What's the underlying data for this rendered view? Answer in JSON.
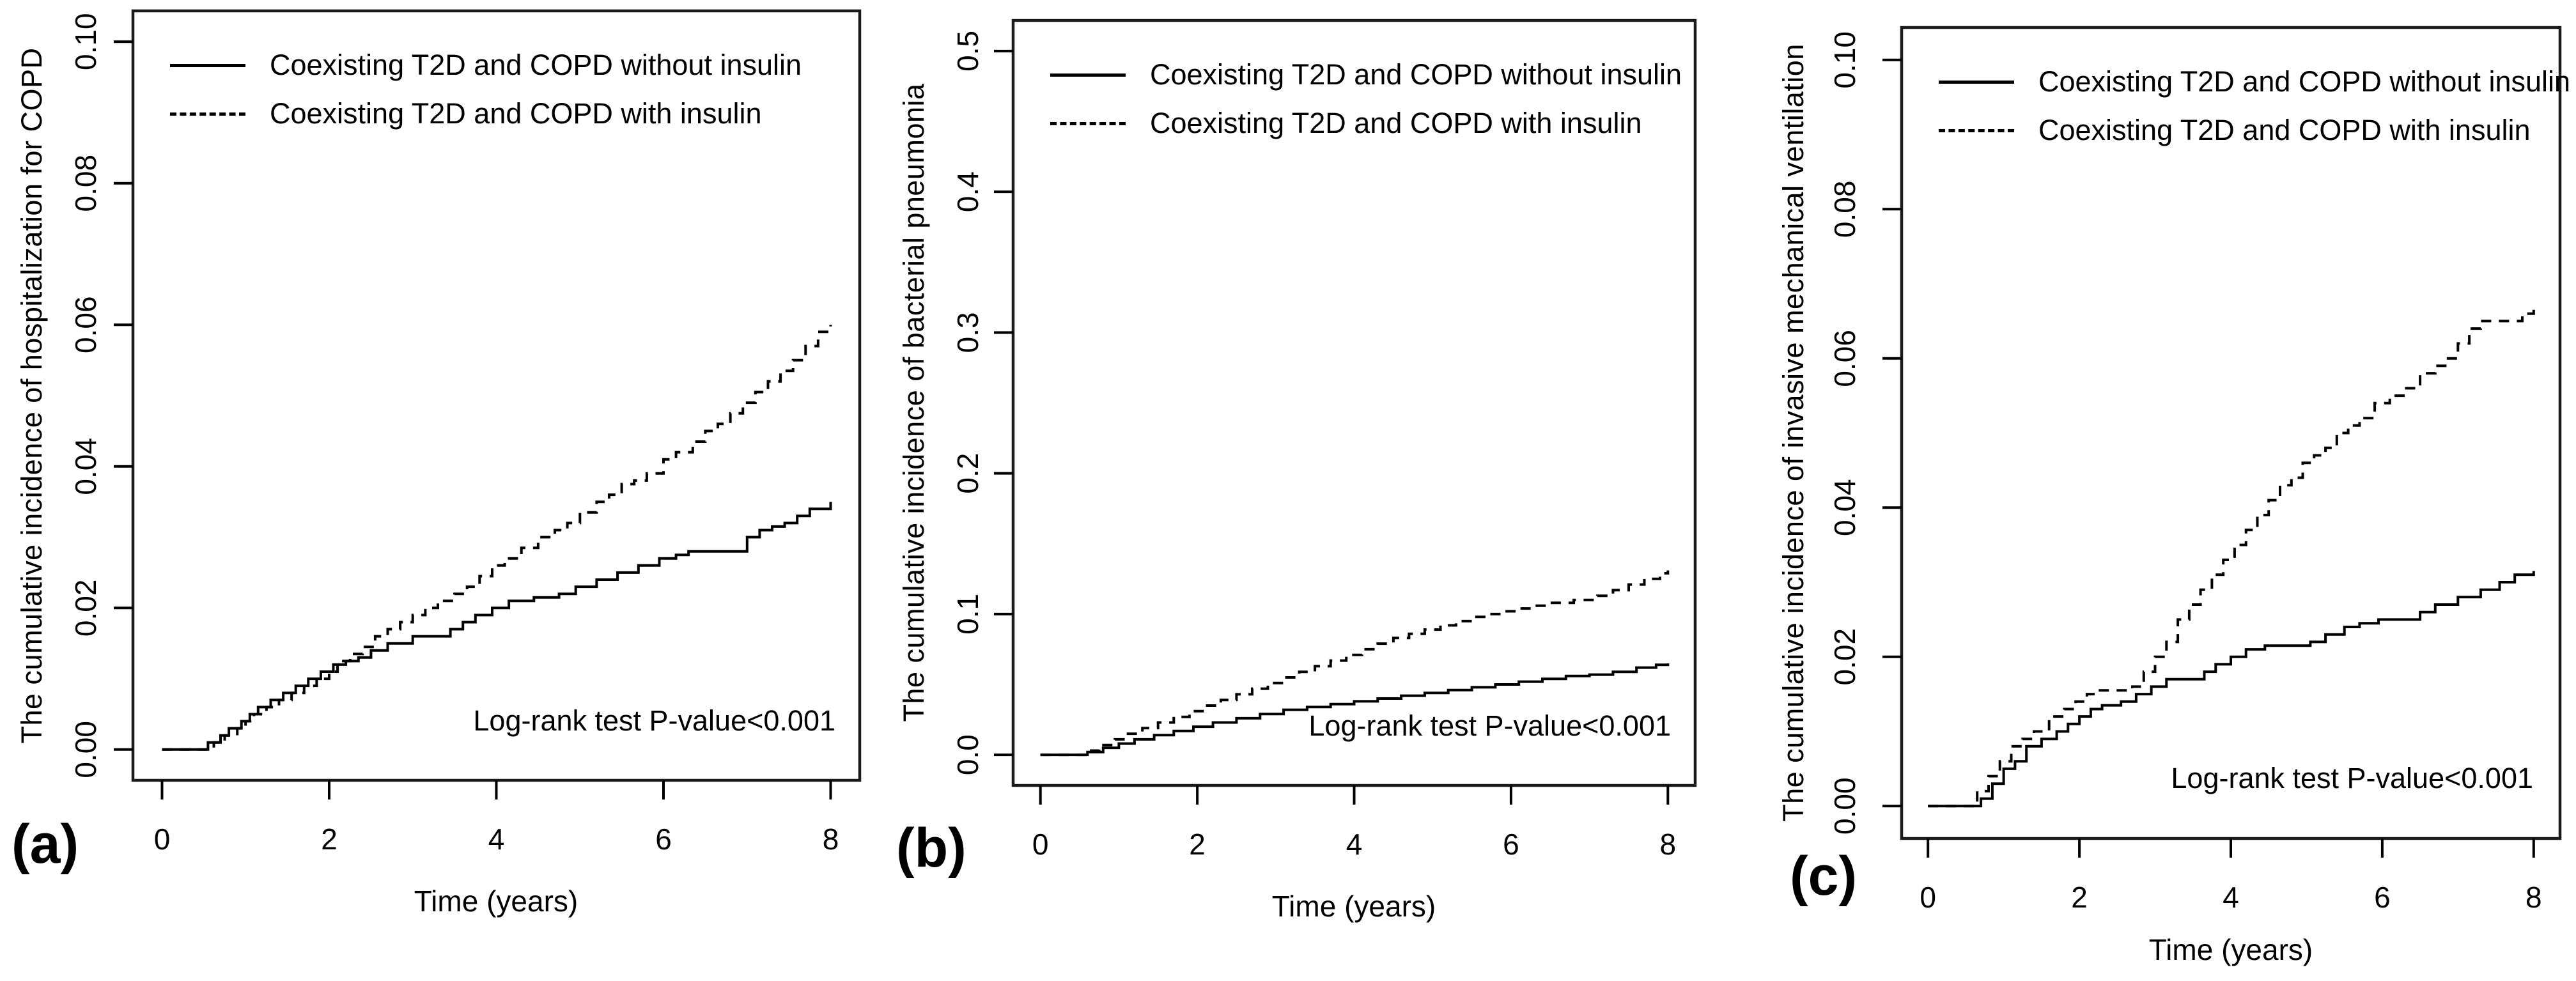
{
  "figure": {
    "background": "#ffffff",
    "line_color": "#000000",
    "border_color": "#1a1a1a",
    "text_color": "#000000"
  },
  "chart_data": [
    {
      "type": "line",
      "step": true,
      "grid": false,
      "panel_label": "(a)",
      "xlabel": "Time (years)",
      "ylabel": "The cumulative incidence of hospitalization for COPD",
      "annotation": "Log-rank test P-value<0.001",
      "legend_position": "top-left",
      "xlim": [
        0,
        8
      ],
      "ylim": [
        0,
        0.1
      ],
      "xticks": [
        "0",
        "2",
        "4",
        "6",
        "8"
      ],
      "yticks": [
        "0.00",
        "0.02",
        "0.04",
        "0.06",
        "0.08",
        "0.10"
      ],
      "series": [
        {
          "name": "Coexisting T2D and COPD without insulin",
          "style": "solid",
          "color": "#000000",
          "x": [
            0,
            0.55,
            0.7,
            0.8,
            0.95,
            1.05,
            1.15,
            1.3,
            1.45,
            1.6,
            1.75,
            1.9,
            2.05,
            2.2,
            2.35,
            2.5,
            2.7,
            3.0,
            3.45,
            3.6,
            3.75,
            3.95,
            4.15,
            4.45,
            4.75,
            4.95,
            5.2,
            5.45,
            5.7,
            5.95,
            6.15,
            6.3,
            7.0,
            7.15,
            7.3,
            7.45,
            7.6,
            7.75,
            8.0
          ],
          "y": [
            0,
            0.001,
            0.002,
            0.003,
            0.004,
            0.005,
            0.006,
            0.007,
            0.008,
            0.009,
            0.01,
            0.011,
            0.012,
            0.0125,
            0.013,
            0.014,
            0.015,
            0.016,
            0.017,
            0.018,
            0.019,
            0.02,
            0.021,
            0.0215,
            0.022,
            0.023,
            0.024,
            0.025,
            0.026,
            0.027,
            0.0275,
            0.028,
            0.03,
            0.031,
            0.0315,
            0.032,
            0.033,
            0.034,
            0.035
          ]
        },
        {
          "name": "Coexisting T2D and COPD with insulin",
          "style": "dashed",
          "color": "#000000",
          "x": [
            0,
            0.62,
            0.75,
            0.9,
            1.0,
            1.1,
            1.25,
            1.4,
            1.55,
            1.7,
            1.85,
            2.0,
            2.1,
            2.25,
            2.4,
            2.55,
            2.7,
            2.85,
            3.0,
            3.15,
            3.3,
            3.5,
            3.65,
            3.8,
            3.95,
            4.1,
            4.3,
            4.5,
            4.7,
            4.85,
            5.0,
            5.2,
            5.35,
            5.5,
            5.65,
            5.8,
            6.0,
            6.15,
            6.35,
            6.5,
            6.65,
            6.8,
            6.95,
            7.1,
            7.25,
            7.4,
            7.55,
            7.7,
            7.85,
            8.0
          ],
          "y": [
            0,
            0.001,
            0.002,
            0.003,
            0.004,
            0.005,
            0.006,
            0.007,
            0.008,
            0.009,
            0.01,
            0.011,
            0.0125,
            0.0135,
            0.0145,
            0.016,
            0.017,
            0.018,
            0.019,
            0.02,
            0.021,
            0.022,
            0.023,
            0.0245,
            0.026,
            0.027,
            0.0285,
            0.03,
            0.031,
            0.032,
            0.0335,
            0.035,
            0.036,
            0.0375,
            0.038,
            0.039,
            0.041,
            0.042,
            0.0435,
            0.045,
            0.046,
            0.0475,
            0.049,
            0.0505,
            0.052,
            0.0535,
            0.055,
            0.057,
            0.059,
            0.06
          ]
        }
      ]
    },
    {
      "type": "line",
      "step": true,
      "grid": false,
      "panel_label": "(b)",
      "xlabel": "Time (years)",
      "ylabel": "The cumulative incidence of bacterial pneumonia",
      "annotation": "Log-rank test P-value<0.001",
      "legend_position": "top-left",
      "xlim": [
        0,
        8
      ],
      "ylim": [
        0,
        0.5
      ],
      "xticks": [
        "0",
        "2",
        "4",
        "6",
        "8"
      ],
      "yticks": [
        "0.0",
        "0.1",
        "0.2",
        "0.3",
        "0.4",
        "0.5"
      ],
      "series": [
        {
          "name": "Coexisting T2D and COPD without insulin",
          "style": "solid",
          "color": "#000000",
          "x": [
            0,
            0.6,
            0.8,
            1.0,
            1.2,
            1.45,
            1.7,
            1.95,
            2.2,
            2.5,
            2.8,
            3.1,
            3.4,
            3.7,
            4.0,
            4.3,
            4.6,
            4.9,
            5.2,
            5.5,
            5.8,
            6.1,
            6.4,
            6.7,
            7.0,
            7.3,
            7.6,
            7.85,
            8.0
          ],
          "y": [
            0,
            0.002,
            0.005,
            0.008,
            0.011,
            0.014,
            0.017,
            0.02,
            0.023,
            0.026,
            0.029,
            0.032,
            0.034,
            0.036,
            0.038,
            0.04,
            0.042,
            0.044,
            0.046,
            0.048,
            0.05,
            0.052,
            0.054,
            0.056,
            0.057,
            0.059,
            0.062,
            0.064,
            0.065
          ]
        },
        {
          "name": "Coexisting T2D and COPD with insulin",
          "style": "dashed",
          "color": "#000000",
          "x": [
            0,
            0.6,
            0.75,
            0.95,
            1.1,
            1.3,
            1.5,
            1.7,
            1.9,
            2.1,
            2.3,
            2.5,
            2.7,
            2.9,
            3.1,
            3.3,
            3.5,
            3.7,
            3.9,
            4.1,
            4.3,
            4.5,
            4.7,
            4.9,
            5.1,
            5.3,
            5.5,
            5.7,
            5.9,
            6.1,
            6.3,
            6.5,
            6.8,
            7.1,
            7.3,
            7.5,
            7.7,
            7.9,
            8.0
          ],
          "y": [
            0,
            0.003,
            0.007,
            0.011,
            0.015,
            0.019,
            0.023,
            0.027,
            0.031,
            0.035,
            0.039,
            0.043,
            0.047,
            0.051,
            0.055,
            0.059,
            0.063,
            0.067,
            0.071,
            0.075,
            0.079,
            0.083,
            0.086,
            0.089,
            0.092,
            0.095,
            0.098,
            0.1,
            0.102,
            0.104,
            0.106,
            0.108,
            0.11,
            0.113,
            0.117,
            0.121,
            0.125,
            0.129,
            0.131
          ]
        }
      ]
    },
    {
      "type": "line",
      "step": true,
      "grid": false,
      "panel_label": "(c)",
      "xlabel": "Time (years)",
      "ylabel": "The cumulative incidence of invasive mechanical ventilation",
      "annotation": "Log-rank test P-value<0.001",
      "legend_position": "top-left",
      "xlim": [
        0,
        8
      ],
      "ylim": [
        0,
        0.1
      ],
      "xticks": [
        "0",
        "2",
        "4",
        "6",
        "8"
      ],
      "yticks": [
        "0.00",
        "0.02",
        "0.04",
        "0.06",
        "0.08",
        "0.10"
      ],
      "series": [
        {
          "name": "Coexisting T2D and COPD without insulin",
          "style": "solid",
          "color": "#000000",
          "x": [
            0,
            0.7,
            0.85,
            1.0,
            1.15,
            1.3,
            1.5,
            1.7,
            1.85,
            2.0,
            2.15,
            2.3,
            2.55,
            2.75,
            2.95,
            3.15,
            3.65,
            3.8,
            4.0,
            4.2,
            4.45,
            5.05,
            5.25,
            5.5,
            5.7,
            5.95,
            6.5,
            6.7,
            7.0,
            7.3,
            7.55,
            7.75,
            8.0
          ],
          "y": [
            0,
            0.001,
            0.003,
            0.005,
            0.006,
            0.008,
            0.009,
            0.01,
            0.011,
            0.012,
            0.013,
            0.0135,
            0.014,
            0.015,
            0.016,
            0.017,
            0.018,
            0.019,
            0.02,
            0.021,
            0.0215,
            0.022,
            0.023,
            0.024,
            0.0245,
            0.025,
            0.026,
            0.027,
            0.028,
            0.029,
            0.03,
            0.031,
            0.0315
          ]
        },
        {
          "name": "Coexisting T2D and COPD with insulin",
          "style": "dashed",
          "color": "#000000",
          "x": [
            0,
            0.65,
            0.8,
            0.95,
            1.1,
            1.25,
            1.4,
            1.6,
            1.8,
            1.95,
            2.1,
            2.25,
            2.7,
            2.85,
            3.0,
            3.15,
            3.3,
            3.45,
            3.6,
            3.75,
            3.9,
            4.05,
            4.2,
            4.35,
            4.5,
            4.65,
            4.8,
            4.95,
            5.1,
            5.25,
            5.4,
            5.55,
            5.7,
            5.9,
            6.1,
            6.3,
            6.5,
            6.7,
            6.85,
            7.0,
            7.15,
            7.3,
            7.85,
            8.0
          ],
          "y": [
            0,
            0.002,
            0.004,
            0.006,
            0.008,
            0.009,
            0.01,
            0.012,
            0.013,
            0.014,
            0.015,
            0.0155,
            0.016,
            0.018,
            0.02,
            0.022,
            0.025,
            0.027,
            0.029,
            0.031,
            0.033,
            0.035,
            0.037,
            0.039,
            0.041,
            0.043,
            0.044,
            0.046,
            0.047,
            0.048,
            0.05,
            0.051,
            0.052,
            0.054,
            0.055,
            0.056,
            0.058,
            0.059,
            0.06,
            0.062,
            0.064,
            0.065,
            0.066,
            0.067
          ]
        }
      ]
    }
  ]
}
